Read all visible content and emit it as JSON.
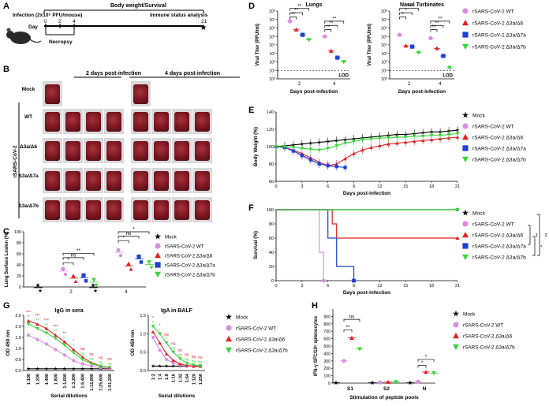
{
  "panel_letters": [
    "A",
    "B",
    "C",
    "D",
    "E",
    "F",
    "G",
    "H"
  ],
  "panel_a": {
    "infection_label": "Infection (2x10⁵ PFU/mouse)",
    "monitor_label": "Body weight/Survival",
    "immune_label": "Immune status analysis",
    "day_label": "Day",
    "necropsy_label": "Necropsy",
    "days": [
      "0",
      "2",
      "4",
      "21"
    ]
  },
  "panel_b": {
    "col_2d": "2 days post-infection",
    "col_4d": "4 days post-infection",
    "rows": [
      "Mock",
      "WT",
      "Δ3a/Δ6",
      "Δ3a/Δ7a",
      "Δ3a/Δ7b"
    ],
    "group_label": "rSARS-CoV-2"
  },
  "legend": {
    "mock": "Mock",
    "wt": "rSARS-CoV-2 WT",
    "d6": "rSARS-CoV-2 Δ3a/Δ6",
    "d7a": "rSARS-CoV-2 Δ3a/Δ7a",
    "d7b": "rSARS-CoV-2 Δ3a/Δ7b"
  },
  "colors": {
    "mock": "#000000",
    "wt": "#d98fe0",
    "d6": "#e02020",
    "d7a": "#1f3fd6",
    "d7b": "#3ad43a"
  },
  "chart_data": [
    {
      "id": "C",
      "type": "scatter",
      "ylabel": "Lung Surface Lesion (%)",
      "categories": [
        "2",
        "4"
      ],
      "ylim": [
        0,
        100
      ],
      "yticks": [
        "0",
        "20",
        "40",
        "60",
        "80",
        "100"
      ],
      "series": [
        {
          "name": "Mock",
          "values": [
            3,
            3
          ]
        },
        {
          "name": "rSARS-CoV-2 WT",
          "values": [
            33,
            67
          ]
        },
        {
          "name": "rSARS-CoV-2 Δ3a/Δ6",
          "values": [
            20,
            42
          ]
        },
        {
          "name": "rSARS-CoV-2 Δ3a/Δ7a",
          "values": [
            21,
            55
          ]
        },
        {
          "name": "rSARS-CoV-2 Δ3a/Δ7b",
          "values": [
            13,
            45
          ]
        }
      ],
      "annotations": [
        "*",
        "ns",
        "**",
        "*",
        "ns",
        "*"
      ]
    },
    {
      "id": "D1",
      "type": "scatter",
      "title": "Lungs",
      "xlabel": "Days post-infection",
      "ylabel": "Viral Titer (PFU/ml)",
      "categories": [
        "2",
        "4"
      ],
      "yticks": [
        "10⁰",
        "10¹",
        "10²",
        "10³",
        "10⁴",
        "10⁵",
        "10⁶",
        "10⁷",
        "10⁸"
      ],
      "log_ylim": [
        0,
        8
      ],
      "series": [
        {
          "name": "rSARS-CoV-2 WT",
          "log_values": [
            6.8,
            5.0
          ]
        },
        {
          "name": "rSARS-CoV-2 Δ3a/Δ6",
          "log_values": [
            5.8,
            3.3
          ]
        },
        {
          "name": "rSARS-CoV-2 Δ3a/Δ7a",
          "log_values": [
            5.2,
            2.5
          ]
        },
        {
          "name": "rSARS-CoV-2 Δ3a/Δ7b",
          "log_values": [
            4.6,
            2.0
          ]
        }
      ],
      "lod": "LOD",
      "annotations": [
        "**",
        "**",
        "**",
        "**",
        "**",
        "**"
      ]
    },
    {
      "id": "D2",
      "type": "scatter",
      "title": "Nasal Turbinates",
      "xlabel": "Days post-infection",
      "ylabel": "Viral Titer (PFU/ml)",
      "categories": [
        "2",
        "4"
      ],
      "yticks": [
        "10⁰",
        "10¹",
        "10²",
        "10³",
        "10⁴",
        "10⁵",
        "10⁶",
        "10⁷",
        "10⁸"
      ],
      "log_ylim": [
        0,
        8
      ],
      "series": [
        {
          "name": "rSARS-CoV-2 WT",
          "log_values": [
            5.2,
            4.8
          ]
        },
        {
          "name": "rSARS-CoV-2 Δ3a/Δ6",
          "log_values": [
            3.9,
            3.6
          ]
        },
        {
          "name": "rSARS-CoV-2 Δ3a/Δ7a",
          "log_values": [
            3.8,
            2.7
          ]
        },
        {
          "name": "rSARS-CoV-2 Δ3a/Δ7b",
          "log_values": [
            3.1,
            1.3
          ]
        }
      ],
      "lod": "LOD",
      "annotations": [
        "*",
        "*",
        "**",
        "**",
        "**",
        "**"
      ]
    },
    {
      "id": "E",
      "type": "line",
      "xlabel": "Days post-infection",
      "ylabel": "Body Weight (%)",
      "xlim": [
        0,
        21
      ],
      "ylim": [
        60,
        140
      ],
      "xticks": [
        "0",
        "3",
        "6",
        "9",
        "12",
        "15",
        "18",
        "21"
      ],
      "yticks": [
        "60",
        "80",
        "100",
        "120",
        "140"
      ],
      "series": [
        {
          "name": "Mock",
          "x": [
            0,
            1,
            2,
            3,
            4,
            5,
            6,
            7,
            8,
            9,
            10,
            11,
            12,
            13,
            14,
            15,
            16,
            17,
            18,
            19,
            20,
            21
          ],
          "y": [
            100,
            101,
            102,
            103,
            104,
            105,
            106,
            107,
            108,
            109,
            110,
            111,
            112,
            113,
            114,
            114,
            115,
            116,
            117,
            117,
            118,
            119
          ]
        },
        {
          "name": "rSARS-CoV-2 WT",
          "x": [
            0,
            1,
            2,
            3,
            4,
            5,
            6
          ],
          "y": [
            100,
            99,
            95,
            89,
            84,
            80,
            80
          ]
        },
        {
          "name": "rSARS-CoV-2 Δ3a/Δ6",
          "x": [
            0,
            1,
            2,
            3,
            4,
            5,
            6,
            7,
            8,
            9,
            10,
            11,
            12,
            13,
            14,
            15,
            16,
            17,
            18,
            19,
            20,
            21
          ],
          "y": [
            100,
            99,
            96,
            92,
            87,
            82,
            78,
            80,
            86,
            92,
            96,
            99,
            101,
            103,
            104,
            105,
            106,
            107,
            108,
            109,
            110,
            111
          ]
        },
        {
          "name": "rSARS-CoV-2 Δ3a/Δ7a",
          "x": [
            0,
            1,
            2,
            3,
            4,
            5,
            6,
            7,
            8
          ],
          "y": [
            100,
            99,
            95,
            90,
            85,
            80,
            78,
            77,
            76
          ]
        },
        {
          "name": "rSARS-CoV-2 Δ3a/Δ7b",
          "x": [
            0,
            1,
            2,
            3,
            4,
            5,
            6,
            7,
            8,
            9,
            10,
            11,
            12,
            13,
            14,
            15,
            16,
            17,
            18,
            19,
            20,
            21
          ],
          "y": [
            100,
            100,
            99,
            98,
            97,
            96,
            98,
            101,
            104,
            106,
            108,
            109,
            110,
            110,
            111,
            111,
            112,
            112,
            113,
            113,
            114,
            115
          ]
        }
      ]
    },
    {
      "id": "F",
      "type": "line",
      "xlabel": "Days post-infection",
      "ylabel": "Survival (%)",
      "xlim": [
        0,
        21
      ],
      "ylim": [
        0,
        100
      ],
      "xticks": [
        "0",
        "3",
        "6",
        "9",
        "12",
        "15",
        "18",
        "21"
      ],
      "yticks": [
        "0",
        "20",
        "40",
        "60",
        "80",
        "100"
      ],
      "series": [
        {
          "name": "Mock",
          "x": [
            0,
            21
          ],
          "y": [
            100,
            100
          ]
        },
        {
          "name": "rSARS-CoV-2 WT",
          "x": [
            0,
            5,
            5,
            5.5,
            5.5
          ],
          "y": [
            100,
            100,
            40,
            40,
            0
          ]
        },
        {
          "name": "rSARS-CoV-2 Δ3a/Δ6",
          "x": [
            0,
            6.5,
            6.5,
            7,
            7,
            21
          ],
          "y": [
            100,
            100,
            80,
            80,
            60,
            60
          ]
        },
        {
          "name": "rSARS-CoV-2 Δ3a/Δ7a",
          "x": [
            0,
            6,
            6,
            7,
            7,
            9,
            9
          ],
          "y": [
            100,
            100,
            60,
            60,
            20,
            20,
            0
          ]
        },
        {
          "name": "rSARS-CoV-2 Δ3a/Δ7b",
          "x": [
            0,
            21
          ],
          "y": [
            100,
            100
          ]
        }
      ],
      "annotations": [
        "**",
        "*",
        "**"
      ]
    },
    {
      "id": "G1",
      "type": "line",
      "title": "IgG in sera",
      "xlabel": "Serial dilutions",
      "ylabel": "OD 450 nm",
      "ylim": [
        0,
        2.5
      ],
      "yticks": [
        "0.0",
        "0.5",
        "1.0",
        "1.5",
        "2.0",
        "2.5"
      ],
      "categories": [
        "1:100",
        "1:200",
        "1:400",
        "1:800",
        "1:1,600",
        "1:3,200",
        "1:6,400",
        "1:12,800",
        "1:25,600",
        "1:51,200"
      ],
      "series": [
        {
          "name": "Mock",
          "values": [
            0.08,
            0.08,
            0.08,
            0.08,
            0.08,
            0.08,
            0.08,
            0.08,
            0.08,
            0.08
          ]
        },
        {
          "name": "rSARS-CoV-2 WT",
          "values": [
            1.6,
            1.4,
            1.2,
            0.95,
            0.7,
            0.45,
            0.3,
            0.2,
            0.13,
            0.1
          ]
        },
        {
          "name": "rSARS-CoV-2 Δ3a/Δ6",
          "values": [
            2.25,
            2.1,
            1.9,
            1.6,
            1.3,
            0.95,
            0.6,
            0.35,
            0.2,
            0.15
          ]
        },
        {
          "name": "rSARS-CoV-2 Δ3a/Δ7b",
          "values": [
            2.1,
            1.9,
            1.7,
            1.45,
            1.15,
            0.8,
            0.5,
            0.3,
            0.2,
            0.14
          ]
        }
      ],
      "significance": [
        {
          "red": "***",
          "green": "**"
        },
        {
          "red": "***",
          "green": "**"
        },
        {
          "red": "***",
          "green": "**"
        },
        {
          "red": "***",
          "green": "**"
        },
        {
          "red": "**",
          "green": "**"
        },
        {
          "red": "*",
          "green": "*"
        },
        {
          "red": "ns",
          "green": "ns"
        },
        {
          "red": "ns",
          "green": "ns"
        },
        {
          "red": "ns",
          "green": "ns"
        },
        {
          "red": "ns",
          "green": "ns"
        }
      ]
    },
    {
      "id": "G2",
      "type": "line",
      "title": "IgA in BALF",
      "xlabel": "Serial dilutions",
      "ylabel": "OD 450 nm",
      "ylim": [
        0,
        1.5
      ],
      "yticks": [
        "0.0",
        "0.5",
        "1.0",
        "1.5"
      ],
      "categories": [
        "1:2",
        "1:4",
        "1:8",
        "1:16",
        "1:32",
        "1:64",
        "1:128",
        "1:256"
      ],
      "series": [
        {
          "name": "Mock",
          "values": [
            0.12,
            0.12,
            0.12,
            0.12,
            0.12,
            0.12,
            0.12,
            0.12
          ]
        },
        {
          "name": "rSARS-CoV-2 WT",
          "values": [
            0.9,
            0.55,
            0.3,
            0.2,
            0.15,
            0.12,
            0.11,
            0.11
          ]
        },
        {
          "name": "rSARS-CoV-2 Δ3a/Δ6",
          "values": [
            1.05,
            0.75,
            0.45,
            0.28,
            0.18,
            0.14,
            0.12,
            0.12
          ]
        },
        {
          "name": "rSARS-CoV-2 Δ3a/Δ7b",
          "values": [
            1.2,
            1.0,
            0.75,
            0.5,
            0.32,
            0.2,
            0.15,
            0.13
          ]
        }
      ],
      "significance": [
        {
          "red": "*",
          "green": "*"
        },
        {
          "red": "*",
          "green": "*"
        },
        {
          "red": "ns",
          "green": "*"
        },
        {
          "red": "ns",
          "green": "ns"
        },
        {
          "red": "ns",
          "green": "ns"
        },
        {
          "red": "ns",
          "green": "ns"
        },
        {
          "red": "ns",
          "green": "ns"
        },
        {
          "red": "ns",
          "green": "ns"
        }
      ]
    },
    {
      "id": "H",
      "type": "scatter",
      "xlabel": "Stimulation of peptide pools",
      "ylabel": "IFN-γ SFC/10⁶ splenocytes",
      "categories": [
        "S1",
        "S2",
        "N"
      ],
      "ylim": [
        0,
        1000
      ],
      "yticks": [
        "0",
        "100",
        "200",
        "300",
        "400",
        "500",
        "600",
        "700",
        "800",
        "900"
      ],
      "series": [
        {
          "name": "Mock",
          "values": [
            5,
            5,
            5
          ]
        },
        {
          "name": "rSARS-CoV-2 WT",
          "values": [
            300,
            10,
            20
          ]
        },
        {
          "name": "rSARS-CoV-2 Δ3a/Δ6",
          "values": [
            610,
            15,
            150
          ]
        },
        {
          "name": "rSARS-CoV-2 Δ3a/Δ7b",
          "values": [
            460,
            15,
            135
          ]
        }
      ],
      "annotations": [
        "**",
        "ns",
        "*",
        "*"
      ]
    }
  ]
}
